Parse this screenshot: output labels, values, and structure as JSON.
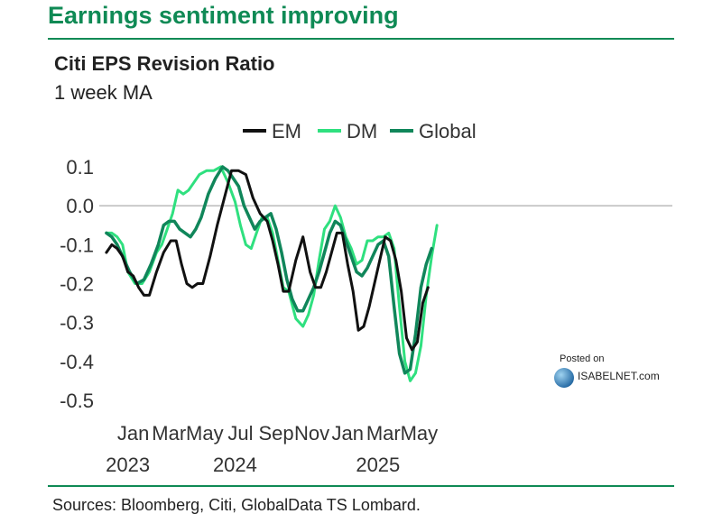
{
  "headline": "Earnings sentiment improving",
  "footer": {
    "source": "Sources: Bloomberg, Citi, GlobalData TS Lombard."
  },
  "watermark": {
    "posted": "Posted on",
    "brand": "ISABELNET.com"
  },
  "colors": {
    "brand": "#0f8a55",
    "em": "#111111",
    "dm": "#2fe07f",
    "global": "#10865a",
    "zero_line": "#999999"
  },
  "chart_data": {
    "type": "line",
    "title": "Citi EPS Revision Ratio",
    "subtitle": "1 week MA",
    "xlabel": "",
    "ylabel": "",
    "ylim": [
      -0.5,
      0.1
    ],
    "yticks": [
      0.1,
      0.0,
      -0.1,
      -0.2,
      -0.3,
      -0.4,
      -0.5
    ],
    "ytick_labels": [
      "0.1",
      "0.0",
      "-0.1",
      "-0.2",
      "-0.3",
      "-0.4",
      "-0.5"
    ],
    "xlim": [
      -0.3,
      29.4
    ],
    "xticks": [
      {
        "pos": 1.5,
        "label": "Jan",
        "year": "2023"
      },
      {
        "pos": 3.5,
        "label": "Mar"
      },
      {
        "pos": 5.5,
        "label": "May"
      },
      {
        "pos": 7.5,
        "label": "Jul",
        "year": "2024"
      },
      {
        "pos": 9.5,
        "label": "Sep"
      },
      {
        "pos": 11.5,
        "label": "Nov"
      },
      {
        "pos": 13.5,
        "label": "Jan"
      },
      {
        "pos": 15.5,
        "label": "Mar",
        "year": "2025"
      },
      {
        "pos": 17.5,
        "label": "May"
      }
    ],
    "grid": false,
    "legend_position": "top-center",
    "series": [
      {
        "name": "EM",
        "x": [
          0,
          0.3,
          0.6,
          0.9,
          1.2,
          1.5,
          1.8,
          2.1,
          2.4,
          2.8,
          3.2,
          3.6,
          3.9,
          4.2,
          4.5,
          4.8,
          5.1,
          5.4,
          5.8,
          6.2,
          6.6,
          7.0,
          7.4,
          7.8,
          8.2,
          8.6,
          9.0,
          9.3,
          9.6,
          9.9,
          10.2,
          10.6,
          11.0,
          11.4,
          11.7,
          12.0,
          12.3,
          12.6,
          12.9,
          13.2,
          13.5,
          13.8,
          14.1,
          14.4,
          14.7,
          15.0,
          15.3,
          15.6,
          15.9,
          16.2,
          16.5,
          16.8,
          17.1,
          17.4,
          17.7,
          18.0
        ],
        "values": [
          -0.12,
          -0.1,
          -0.11,
          -0.13,
          -0.17,
          -0.18,
          -0.21,
          -0.23,
          -0.23,
          -0.17,
          -0.12,
          -0.09,
          -0.09,
          -0.15,
          -0.2,
          -0.21,
          -0.2,
          -0.2,
          -0.13,
          -0.05,
          0.02,
          0.09,
          0.09,
          0.08,
          0.02,
          -0.02,
          -0.04,
          -0.09,
          -0.15,
          -0.22,
          -0.22,
          -0.14,
          -0.08,
          -0.17,
          -0.21,
          -0.21,
          -0.17,
          -0.12,
          -0.07,
          -0.07,
          -0.15,
          -0.22,
          -0.32,
          -0.31,
          -0.26,
          -0.2,
          -0.14,
          -0.08,
          -0.09,
          -0.14,
          -0.22,
          -0.34,
          -0.37,
          -0.35,
          -0.25,
          -0.21
        ]
      },
      {
        "name": "DM",
        "x": [
          0,
          0.3,
          0.6,
          0.9,
          1.2,
          1.6,
          2.0,
          2.4,
          2.8,
          3.1,
          3.4,
          3.7,
          4.0,
          4.3,
          4.6,
          4.9,
          5.2,
          5.6,
          6.0,
          6.4,
          6.8,
          7.2,
          7.5,
          7.8,
          8.1,
          8.4,
          8.7,
          9.0,
          9.3,
          9.6,
          9.9,
          10.2,
          10.6,
          11.0,
          11.3,
          11.6,
          11.9,
          12.2,
          12.5,
          12.8,
          13.1,
          13.4,
          13.7,
          14.0,
          14.3,
          14.6,
          14.9,
          15.2,
          15.5,
          15.8,
          16.1,
          16.4,
          16.7,
          17.0,
          17.3,
          17.6,
          17.9,
          18.2,
          18.5
        ],
        "values": [
          -0.07,
          -0.07,
          -0.08,
          -0.1,
          -0.17,
          -0.2,
          -0.2,
          -0.17,
          -0.12,
          -0.1,
          -0.06,
          -0.02,
          0.04,
          0.03,
          0.04,
          0.06,
          0.08,
          0.09,
          0.09,
          0.1,
          0.06,
          0.01,
          -0.05,
          -0.1,
          -0.11,
          -0.07,
          -0.03,
          -0.03,
          -0.07,
          -0.14,
          -0.21,
          -0.22,
          -0.29,
          -0.31,
          -0.28,
          -0.23,
          -0.14,
          -0.06,
          -0.04,
          0.0,
          -0.03,
          -0.08,
          -0.11,
          -0.15,
          -0.14,
          -0.09,
          -0.09,
          -0.08,
          -0.08,
          -0.07,
          -0.11,
          -0.26,
          -0.4,
          -0.45,
          -0.43,
          -0.36,
          -0.23,
          -0.13,
          -0.05
        ]
      },
      {
        "name": "Global",
        "x": [
          0,
          0.3,
          0.6,
          0.9,
          1.3,
          1.7,
          2.1,
          2.5,
          2.9,
          3.2,
          3.5,
          3.8,
          4.1,
          4.4,
          4.7,
          5.0,
          5.3,
          5.7,
          6.1,
          6.5,
          6.8,
          7.1,
          7.4,
          7.7,
          8.0,
          8.3,
          8.6,
          8.9,
          9.2,
          9.5,
          9.8,
          10.1,
          10.4,
          10.7,
          11.0,
          11.3,
          11.6,
          11.9,
          12.2,
          12.5,
          12.8,
          13.1,
          13.4,
          13.7,
          14.0,
          14.3,
          14.6,
          14.9,
          15.2,
          15.5,
          15.8,
          16.1,
          16.4,
          16.7,
          17.0,
          17.3,
          17.6,
          17.9,
          18.2
        ],
        "values": [
          -0.07,
          -0.08,
          -0.1,
          -0.13,
          -0.17,
          -0.2,
          -0.19,
          -0.15,
          -0.1,
          -0.05,
          -0.04,
          -0.04,
          -0.06,
          -0.07,
          -0.08,
          -0.06,
          -0.03,
          0.03,
          0.07,
          0.1,
          0.09,
          0.07,
          0.05,
          0.0,
          -0.03,
          -0.06,
          -0.04,
          -0.03,
          -0.02,
          -0.06,
          -0.12,
          -0.19,
          -0.24,
          -0.27,
          -0.27,
          -0.24,
          -0.21,
          -0.17,
          -0.12,
          -0.07,
          -0.04,
          -0.05,
          -0.09,
          -0.13,
          -0.17,
          -0.18,
          -0.16,
          -0.13,
          -0.1,
          -0.09,
          -0.13,
          -0.26,
          -0.38,
          -0.43,
          -0.42,
          -0.33,
          -0.21,
          -0.15,
          -0.11
        ]
      }
    ]
  }
}
